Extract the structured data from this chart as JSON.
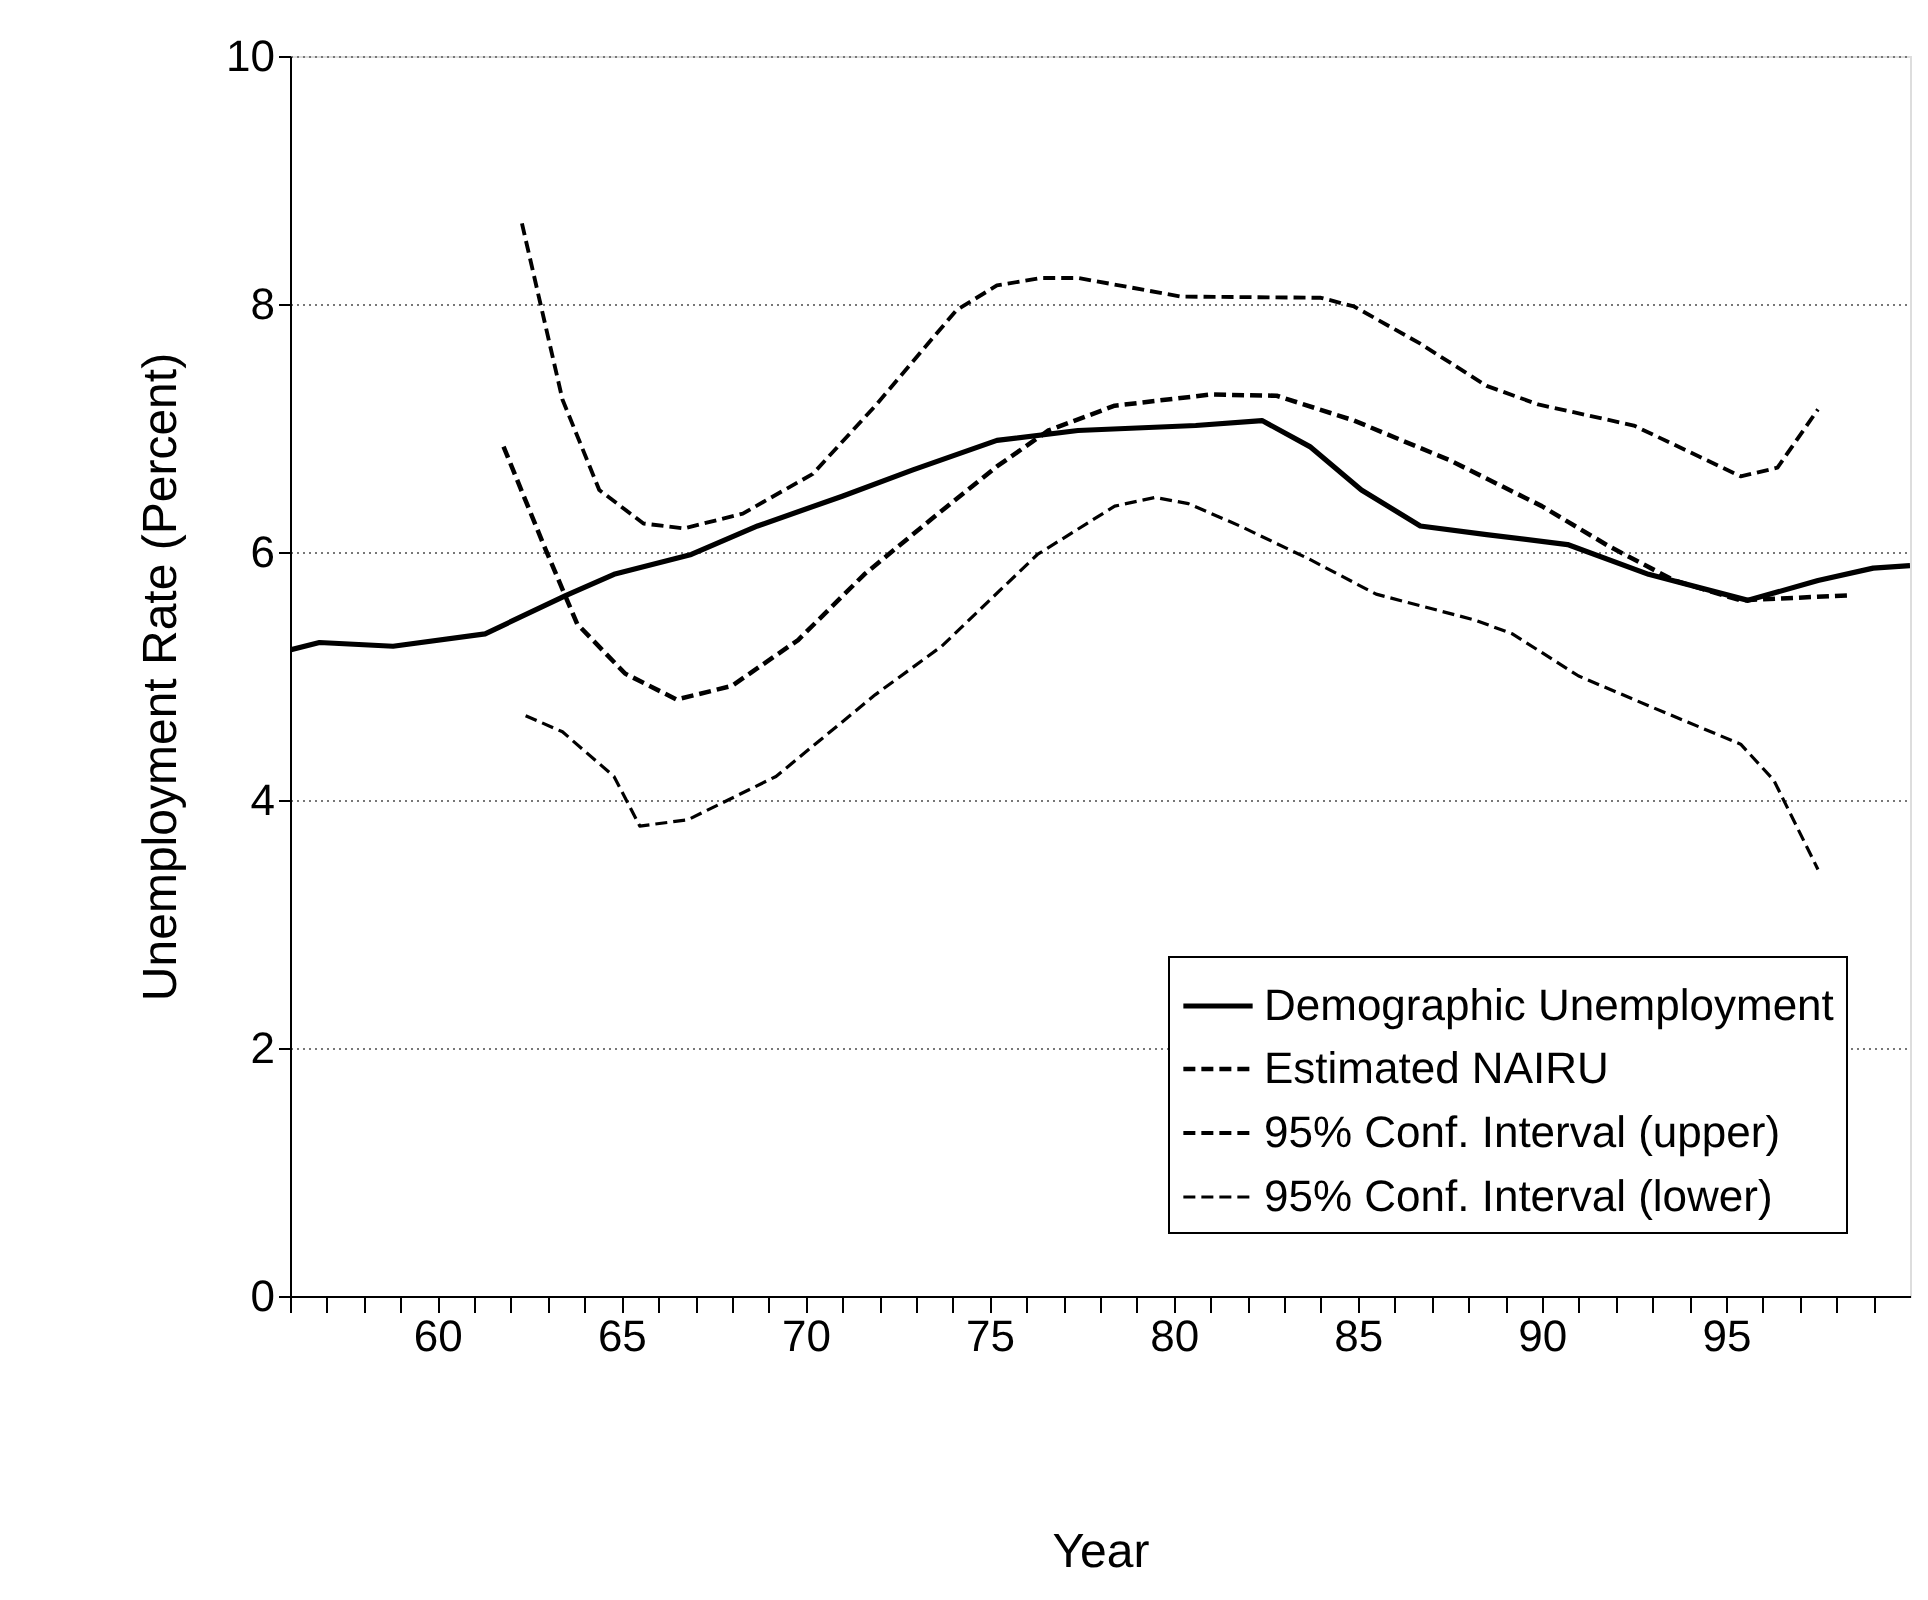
{
  "chart_data": {
    "type": "line",
    "xlabel": "Year",
    "ylabel": "Unemployment Rate (Percent)",
    "xlim": [
      56,
      100
    ],
    "ylim": [
      0,
      10
    ],
    "xticks": [
      {
        "value": 56,
        "label": null
      },
      {
        "value": 57,
        "label": null
      },
      {
        "value": 58,
        "label": null
      },
      {
        "value": 59,
        "label": null
      },
      60,
      {
        "value": 61,
        "label": null
      },
      {
        "value": 62,
        "label": null
      },
      {
        "value": 63,
        "label": null
      },
      {
        "value": 64,
        "label": null
      },
      65,
      {
        "value": 66,
        "label": null
      },
      {
        "value": 67,
        "label": null
      },
      {
        "value": 68,
        "label": null
      },
      {
        "value": 69,
        "label": null
      },
      70,
      {
        "value": 71,
        "label": null
      },
      {
        "value": 72,
        "label": null
      },
      {
        "value": 73,
        "label": null
      },
      {
        "value": 74,
        "label": null
      },
      75,
      {
        "value": 76,
        "label": null
      },
      {
        "value": 77,
        "label": null
      },
      {
        "value": 78,
        "label": null
      },
      {
        "value": 79,
        "label": null
      },
      80,
      {
        "value": 81,
        "label": null
      },
      {
        "value": 82,
        "label": null
      },
      {
        "value": 83,
        "label": null
      },
      {
        "value": 84,
        "label": null
      },
      85,
      {
        "value": 86,
        "label": null
      },
      {
        "value": 87,
        "label": null
      },
      {
        "value": 88,
        "label": null
      },
      {
        "value": 89,
        "label": null
      },
      90,
      {
        "value": 91,
        "label": null
      },
      {
        "value": 92,
        "label": null
      },
      {
        "value": 93,
        "label": null
      },
      {
        "value": 94,
        "label": null
      },
      95,
      {
        "value": 96,
        "label": null
      },
      {
        "value": 97,
        "label": null
      },
      {
        "value": 98,
        "label": null
      },
      {
        "value": 99,
        "label": null
      }
    ],
    "yticks": [
      0,
      2,
      4,
      6,
      8,
      10
    ],
    "grid": "y",
    "legend": "bottom right",
    "marker": "none",
    "series": [
      {
        "name": "Demographic Unemployment",
        "color": "#000000",
        "line_style": "solid",
        "x": [
          56,
          56.8,
          58.8,
          61.3,
          63.5,
          64.8,
          66.9,
          68.7,
          71.0,
          72.9,
          75.2,
          77.4,
          80.6,
          82.4,
          83.7,
          85.1,
          86.7,
          88.5,
          90.7,
          92.9,
          95.6,
          97.5,
          99.0,
          100
        ],
        "values": [
          5.21,
          5.27,
          5.24,
          5.34,
          5.65,
          5.82,
          5.98,
          6.21,
          6.45,
          6.66,
          6.9,
          6.98,
          7.02,
          7.06,
          6.85,
          6.5,
          6.21,
          6.14,
          6.06,
          5.82,
          5.61,
          5.77,
          5.87,
          5.89
        ]
      },
      {
        "name": "Estimated NAIRU",
        "color": "#000000",
        "line_style": "dashed",
        "x": [
          61.8,
          62.9,
          63.8,
          65.1,
          66.5,
          68.0,
          69.8,
          71.6,
          73.4,
          75.2,
          76.6,
          78.4,
          81.0,
          82.8,
          84.9,
          87.5,
          90.0,
          91.8,
          93.6,
          95.4,
          98.3
        ],
        "values": [
          6.85,
          6.05,
          5.42,
          5.02,
          4.81,
          4.92,
          5.29,
          5.82,
          6.26,
          6.69,
          6.98,
          7.18,
          7.27,
          7.26,
          7.06,
          6.74,
          6.37,
          6.05,
          5.77,
          5.61,
          5.65
        ]
      },
      {
        "name": "95% Conf. Interval (upper)",
        "color": "#000000",
        "line_style": "dashed",
        "x": [
          62.3,
          63.4,
          64.4,
          65.6,
          66.7,
          68.3,
          70.2,
          71.9,
          74.1,
          75.2,
          76.4,
          77.4,
          80.2,
          84.0,
          84.9,
          86.7,
          88.5,
          89.9,
          92.5,
          95.4,
          96.4,
          97.5
        ],
        "values": [
          8.65,
          7.23,
          6.5,
          6.23,
          6.19,
          6.31,
          6.63,
          7.18,
          7.95,
          8.15,
          8.21,
          8.21,
          8.06,
          8.05,
          7.98,
          7.68,
          7.34,
          7.19,
          7.02,
          6.61,
          6.68,
          7.15
        ]
      },
      {
        "name": "95% Conf. Interval (lower)",
        "color": "#000000",
        "line_style": "dashed",
        "x": [
          62.4,
          63.4,
          64.8,
          65.5,
          66.8,
          67.9,
          69.2,
          71.9,
          73.7,
          76.3,
          78.4,
          79.5,
          80.4,
          81.8,
          83.7,
          85.5,
          88.2,
          89.2,
          91.0,
          92.9,
          95.4,
          96.3,
          97.5
        ],
        "values": [
          4.68,
          4.55,
          4.19,
          3.79,
          3.84,
          4.0,
          4.19,
          4.85,
          5.24,
          5.98,
          6.37,
          6.44,
          6.39,
          6.21,
          5.94,
          5.66,
          5.45,
          5.34,
          5.0,
          4.76,
          4.45,
          4.16,
          3.44
        ]
      }
    ]
  }
}
